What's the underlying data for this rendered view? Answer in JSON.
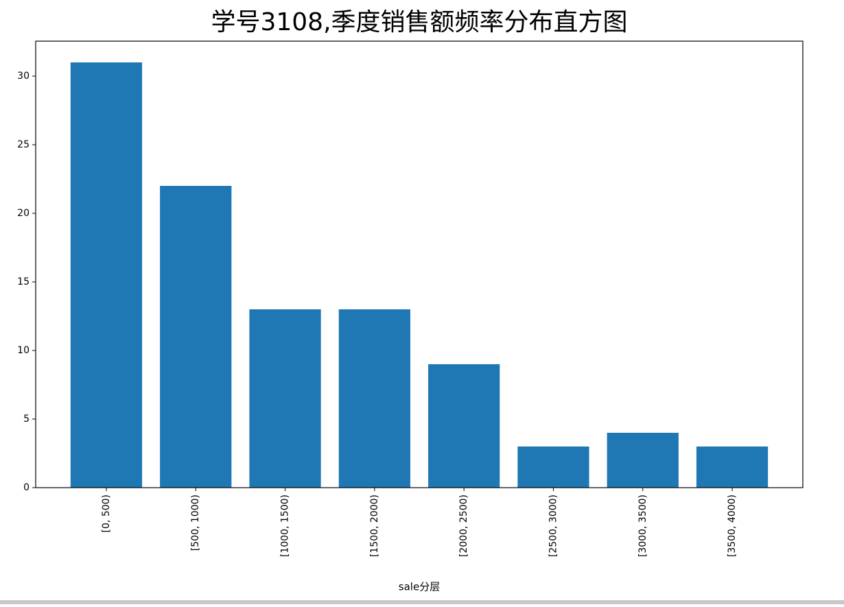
{
  "chart_data": {
    "type": "bar",
    "title": "学号3108,季度销售额频率分布直方图",
    "x_label": "sale分层",
    "categories": [
      "[0, 500)",
      "[500, 1000)",
      "[1000, 1500)",
      "[1500, 2000)",
      "[2000, 2500)",
      "[2500, 3000)",
      "[3000, 3500)",
      "[3500, 4000)"
    ],
    "values": [
      31,
      22,
      13,
      13,
      9,
      3,
      4,
      3
    ],
    "color": "#1f77b4",
    "ylim": [
      0,
      32.55
    ],
    "yticks": [
      0,
      5,
      10,
      15,
      20,
      25,
      30
    ],
    "grid": false
  }
}
